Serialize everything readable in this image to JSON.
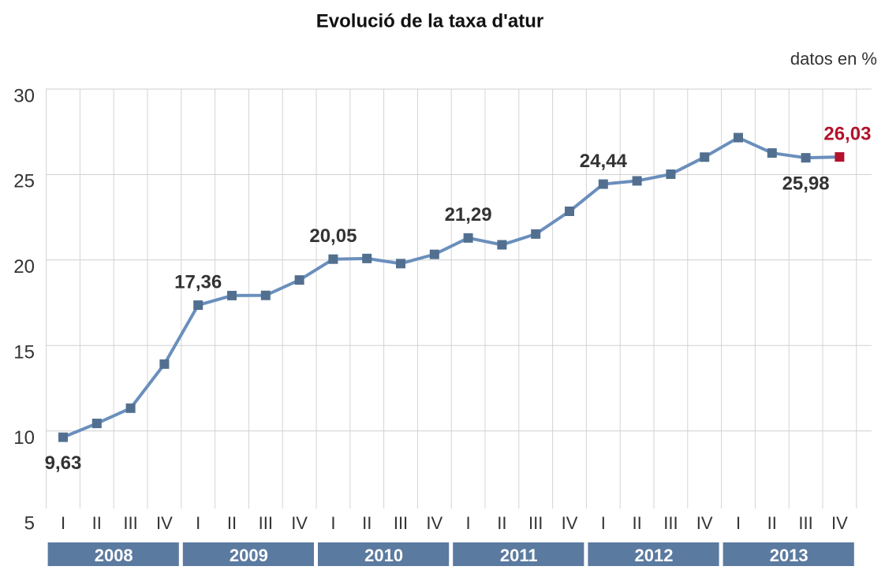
{
  "chart_data": {
    "type": "line",
    "title": "Evolució de la taxa d'atur",
    "unit_note": "datos en %",
    "categories": [
      "I",
      "II",
      "III",
      "IV",
      "I",
      "II",
      "III",
      "IV",
      "I",
      "II",
      "III",
      "IV",
      "I",
      "II",
      "III",
      "IV",
      "I",
      "II",
      "III",
      "IV",
      "I",
      "II",
      "III",
      "IV"
    ],
    "year_groups": [
      "2008",
      "2009",
      "2010",
      "2011",
      "2012",
      "2013"
    ],
    "series": [
      {
        "name": "taxa d'atur",
        "color": "#6a8fbd",
        "marker_color": "#526f8f",
        "highlight_color": "#b3132d",
        "values": [
          9.63,
          10.44,
          11.33,
          13.91,
          17.36,
          17.92,
          17.93,
          18.83,
          20.05,
          20.09,
          19.79,
          20.33,
          21.29,
          20.89,
          21.52,
          22.85,
          24.44,
          24.63,
          25.02,
          26.02,
          27.16,
          26.26,
          25.98,
          26.03
        ],
        "value_labels": [
          "9,63",
          null,
          null,
          null,
          "17,36",
          null,
          null,
          null,
          "20,05",
          null,
          null,
          null,
          "21,29",
          null,
          null,
          null,
          "24,44",
          null,
          null,
          null,
          null,
          null,
          "25,98",
          "26,03"
        ]
      }
    ],
    "ylim": [
      5,
      30
    ],
    "yticks": [
      5,
      10,
      15,
      20,
      25,
      30
    ],
    "grid": true
  }
}
